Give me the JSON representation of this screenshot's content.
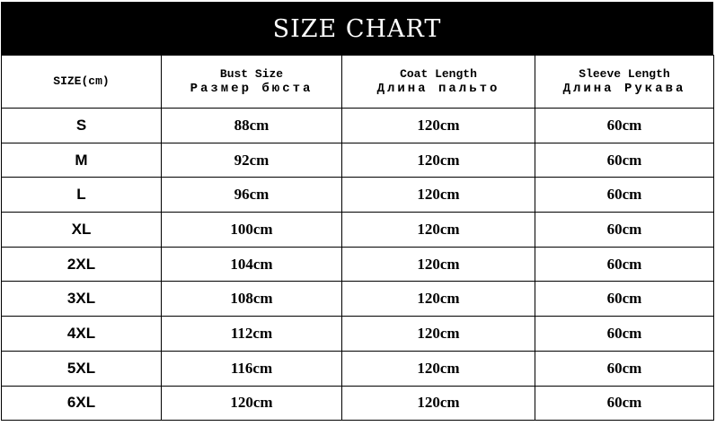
{
  "title": "SIZE CHART",
  "headers": [
    {
      "en": "SIZE(cm)",
      "ru": ""
    },
    {
      "en": "Bust Size",
      "ru": "Размер бюста"
    },
    {
      "en": "Coat Length",
      "ru": "Длина пальто"
    },
    {
      "en": "Sleeve Length",
      "ru": "Длина Рукава"
    }
  ],
  "rows": [
    [
      "S",
      "88cm",
      "120cm",
      "60cm"
    ],
    [
      "M",
      "92cm",
      "120cm",
      "60cm"
    ],
    [
      "L",
      "96cm",
      "120cm",
      "60cm"
    ],
    [
      "XL",
      "100cm",
      "120cm",
      "60cm"
    ],
    [
      "2XL",
      "104cm",
      "120cm",
      "60cm"
    ],
    [
      "3XL",
      "108cm",
      "120cm",
      "60cm"
    ],
    [
      "4XL",
      "112cm",
      "120cm",
      "60cm"
    ],
    [
      "5XL",
      "116cm",
      "120cm",
      "60cm"
    ],
    [
      "6XL",
      "120cm",
      "120cm",
      "60cm"
    ]
  ]
}
